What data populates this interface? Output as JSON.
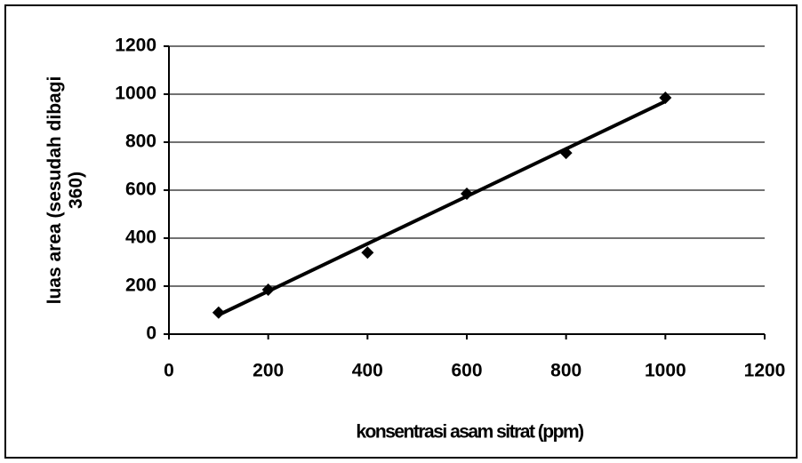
{
  "chart_data": {
    "type": "scatter",
    "y_label": [
      "luas area (sesudah dibagi",
      "360)"
    ],
    "x_label": "konsentrasi asam sitrat (ppm)",
    "x": [
      100,
      200,
      400,
      600,
      800,
      1000
    ],
    "values": [
      90,
      185,
      340,
      585,
      755,
      985
    ],
    "color": "#000000",
    "trendline": {
      "x": [
        100,
        1000
      ],
      "values": [
        80,
        970
      ]
    },
    "xlim": [
      0,
      1200
    ],
    "xticks": [
      0,
      200,
      400,
      600,
      800,
      1000,
      1200
    ],
    "ylim": [
      0,
      1200
    ],
    "yticks": [
      0,
      200,
      400,
      600,
      800,
      1000,
      1200
    ],
    "grid": true
  }
}
